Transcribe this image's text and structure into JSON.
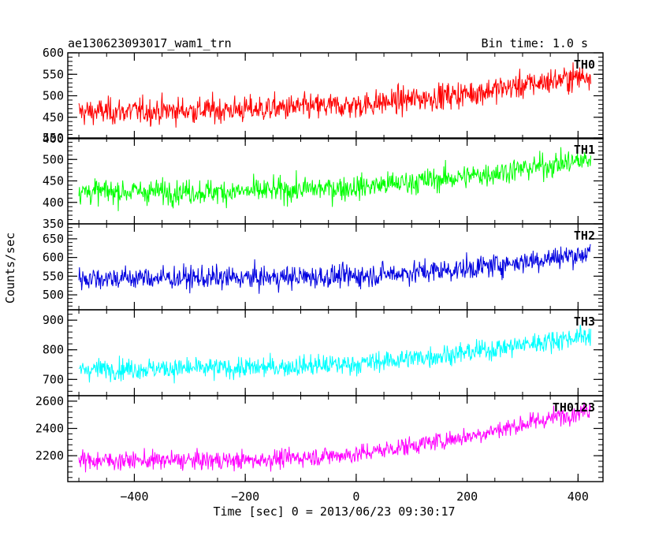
{
  "chart_data": {
    "type": "line",
    "title_left": "ae130623093017_wam1_trn",
    "title_right": "Bin time: 1.0 s",
    "xlabel": "Time [sec] 0 = 2013/06/23 09:30:17",
    "ylabel": "Counts/sec",
    "xlim": [
      -520,
      445
    ],
    "x_range": [
      -500,
      423
    ],
    "x_ticks": [
      "−400",
      "−200",
      "0",
      "200",
      "400"
    ],
    "x_tick_values": [
      -400,
      -200,
      0,
      200,
      400
    ],
    "panels": [
      {
        "name": "TH0",
        "color": "#ff0000",
        "ylim": [
          400,
          600
        ],
        "y_ticks": [
          "400",
          "450",
          "500",
          "550",
          "600"
        ],
        "y_tick_values": [
          400,
          450,
          500,
          550,
          600
        ],
        "trend_x": [
          -500,
          -200,
          0,
          200,
          423
        ],
        "trend_y": [
          462,
          468,
          478,
          505,
          548
        ],
        "noise": 28
      },
      {
        "name": "TH1",
        "color": "#00ff00",
        "ylim": [
          350,
          550
        ],
        "y_ticks": [
          "350",
          "400",
          "450",
          "500",
          "550"
        ],
        "y_tick_values": [
          350,
          400,
          450,
          500,
          550
        ],
        "trend_x": [
          -500,
          -200,
          0,
          200,
          423
        ],
        "trend_y": [
          425,
          425,
          435,
          460,
          500
        ],
        "noise": 26
      },
      {
        "name": "TH2",
        "color": "#0000e0",
        "ylim": [
          460,
          690
        ],
        "y_ticks": [
          "500",
          "550",
          "600",
          "650"
        ],
        "y_tick_values": [
          500,
          550,
          600,
          650
        ],
        "trend_x": [
          -500,
          -200,
          0,
          200,
          423
        ],
        "trend_y": [
          545,
          545,
          550,
          570,
          612
        ],
        "noise": 28
      },
      {
        "name": "TH3",
        "color": "#00ffff",
        "ylim": [
          645,
          935
        ],
        "y_ticks": [
          "700",
          "800",
          "900"
        ],
        "y_tick_values": [
          700,
          800,
          900
        ],
        "trend_x": [
          -500,
          -200,
          0,
          200,
          423
        ],
        "trend_y": [
          735,
          738,
          752,
          790,
          850
        ],
        "noise": 32
      },
      {
        "name": "TH0123",
        "color": "#ff00ff",
        "ylim": [
          2010,
          2640
        ],
        "y_ticks": [
          "2200",
          "2400",
          "2600"
        ],
        "y_tick_values": [
          2200,
          2400,
          2600
        ],
        "trend_x": [
          -500,
          -200,
          0,
          200,
          423
        ],
        "trend_y": [
          2165,
          2165,
          2210,
          2340,
          2540
        ],
        "noise": 62
      }
    ]
  }
}
